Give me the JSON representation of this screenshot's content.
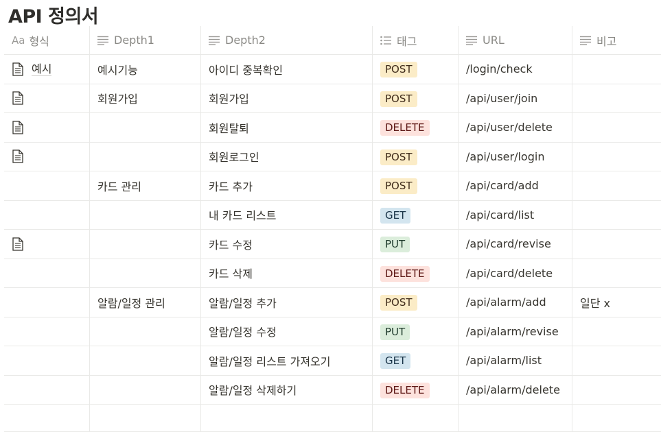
{
  "page": {
    "title": "API 정의서"
  },
  "table": {
    "headers": [
      {
        "label": "형식",
        "prefix": "Aa",
        "icon": "title-property-icon"
      },
      {
        "label": "Depth1",
        "icon": "text-property-icon"
      },
      {
        "label": "Depth2",
        "icon": "text-property-icon"
      },
      {
        "label": "태그",
        "icon": "multi-select-property-icon"
      },
      {
        "label": "URL",
        "icon": "text-property-icon"
      },
      {
        "label": "비고",
        "icon": "text-property-icon"
      }
    ],
    "tag_colors": {
      "POST": {
        "bg": "#fbecc7",
        "fg": "#402c1b"
      },
      "DELETE": {
        "bg": "#fde2dd",
        "fg": "#5d1715"
      },
      "GET": {
        "bg": "#d3e5ef",
        "fg": "#183347"
      },
      "PUT": {
        "bg": "#dbeddb",
        "fg": "#1c3829"
      }
    },
    "rows": [
      {
        "doc": true,
        "name": "예시",
        "depth1": "예시기능",
        "depth2": "아이디 중복확인",
        "tag": "POST",
        "url": "/login/check",
        "note": ""
      },
      {
        "doc": true,
        "name": "",
        "depth1": "회원가입",
        "depth2": "회원가입",
        "tag": "POST",
        "url": "/api/user/join",
        "note": ""
      },
      {
        "doc": true,
        "name": "",
        "depth1": "",
        "depth2": "회원탈퇴",
        "tag": "DELETE",
        "url": "/api/user/delete",
        "note": ""
      },
      {
        "doc": true,
        "name": "",
        "depth1": "",
        "depth2": "회원로그인",
        "tag": "POST",
        "url": "/api/user/login",
        "note": ""
      },
      {
        "doc": false,
        "name": "",
        "depth1": "카드 관리",
        "depth2": "카드 추가",
        "tag": "POST",
        "url": "/api/card/add",
        "note": ""
      },
      {
        "doc": false,
        "name": "",
        "depth1": "",
        "depth2": "내 카드 리스트",
        "tag": "GET",
        "url": "/api/card/list",
        "note": ""
      },
      {
        "doc": true,
        "name": "",
        "depth1": "",
        "depth2": "카드 수정",
        "tag": "PUT",
        "url": "/api/card/revise",
        "note": ""
      },
      {
        "doc": false,
        "name": "",
        "depth1": "",
        "depth2": "카드 삭제",
        "tag": "DELETE",
        "url": "/api/card/delete",
        "note": ""
      },
      {
        "doc": false,
        "name": "",
        "depth1": "알람/일정 관리",
        "depth2": "알람/일정 추가",
        "tag": "POST",
        "url": "/api/alarm/add",
        "note": "일단 x"
      },
      {
        "doc": false,
        "name": "",
        "depth1": "",
        "depth2": "알람/일정 수정",
        "tag": "PUT",
        "url": "/api/alarm/revise",
        "note": ""
      },
      {
        "doc": false,
        "name": "",
        "depth1": "",
        "depth2": "알람/일정 리스트 가져오기",
        "tag": "GET",
        "url": "/api/alarm/list",
        "note": ""
      },
      {
        "doc": false,
        "name": "",
        "depth1": "",
        "depth2": "알람/일정 삭제하기",
        "tag": "DELETE",
        "url": "/api/alarm/delete",
        "note": ""
      }
    ]
  }
}
